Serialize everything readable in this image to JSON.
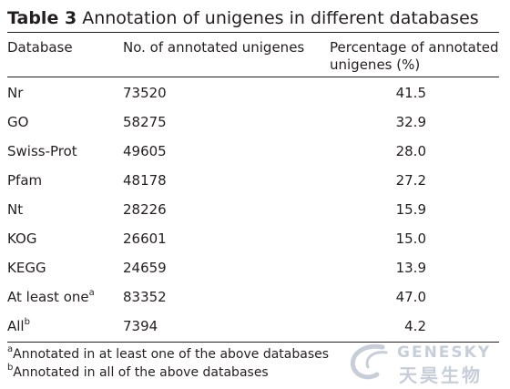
{
  "table": {
    "label": "Table 3",
    "caption": "Annotation of unigenes in different databases",
    "headers": {
      "database": "Database",
      "count": "No. of annotated unigenes",
      "percent_line1": "Percentage of annotated",
      "percent_line2": "unigenes (%)"
    },
    "rows": [
      {
        "database": "Nr",
        "sup": "",
        "count": "73520",
        "percent": "41.5"
      },
      {
        "database": "GO",
        "sup": "",
        "count": "58275",
        "percent": "32.9"
      },
      {
        "database": "Swiss-Prot",
        "sup": "",
        "count": "49605",
        "percent": "28.0"
      },
      {
        "database": "Pfam",
        "sup": "",
        "count": "48178",
        "percent": "27.2"
      },
      {
        "database": "Nt",
        "sup": "",
        "count": "28226",
        "percent": "15.9"
      },
      {
        "database": "KOG",
        "sup": "",
        "count": "26601",
        "percent": "15.0"
      },
      {
        "database": "KEGG",
        "sup": "",
        "count": "24659",
        "percent": "13.9"
      },
      {
        "database": "At least one",
        "sup": "a",
        "count": "83352",
        "percent": "47.0"
      },
      {
        "database": "All",
        "sup": "b",
        "count": "7394",
        "percent": "4.2"
      }
    ],
    "footnotes": [
      {
        "mark": "a",
        "text": "Annotated in at least one of the above databases"
      },
      {
        "mark": "b",
        "text": "Annotated in all of the above databases"
      }
    ]
  },
  "watermark": {
    "text_en": "GENESKY",
    "text_cn": "天昊生物",
    "color": "#9aa7bd"
  }
}
